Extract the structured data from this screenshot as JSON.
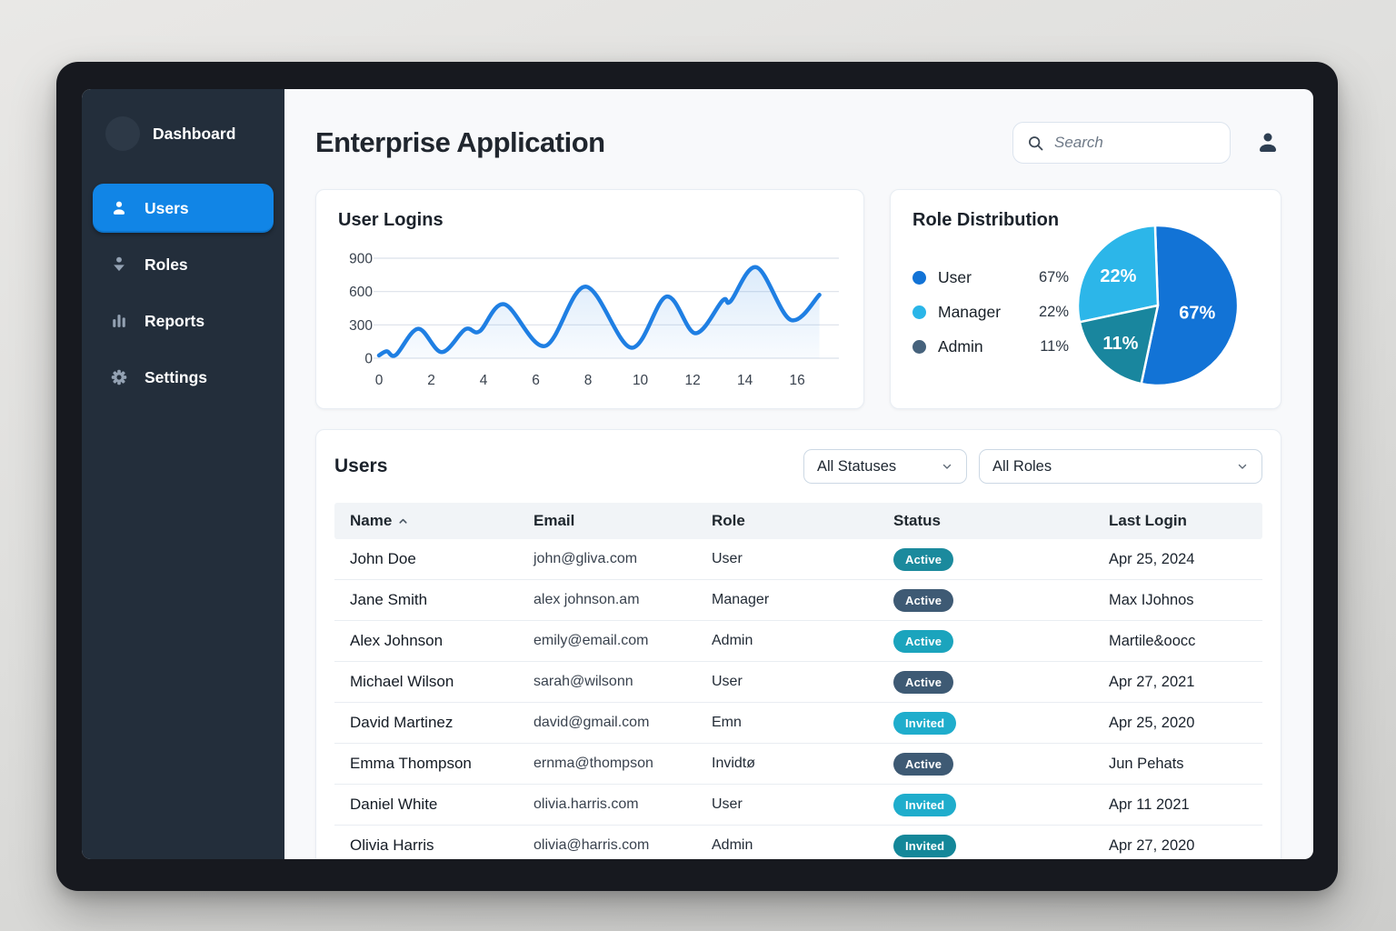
{
  "sidebar": {
    "header_label": "Dashboard",
    "items": [
      {
        "label": "Users",
        "icon": "user-icon",
        "active": true
      },
      {
        "label": "Roles",
        "icon": "roles-icon",
        "active": false
      },
      {
        "label": "Reports",
        "icon": "bar-chart-icon",
        "active": false
      },
      {
        "label": "Settings",
        "icon": "gear-icon",
        "active": false
      }
    ],
    "colors": {
      "background": "#232e3b",
      "active_item": "#1185e6",
      "icon": "#93a1b2"
    }
  },
  "header": {
    "title": "Enterprise Application",
    "search_placeholder": "Search"
  },
  "chart_data": [
    {
      "type": "line",
      "title": "User Logins",
      "x": [
        0,
        0.3,
        0.65,
        1.5,
        2.4,
        3.3,
        3.85,
        4.8,
        6.35,
        7.9,
        9.65,
        11,
        12.1,
        13.15,
        13.45,
        14.45,
        15.75,
        16.85
      ],
      "y": [
        25,
        62,
        30,
        265,
        55,
        260,
        242,
        485,
        110,
        645,
        95,
        555,
        225,
        520,
        512,
        818,
        345,
        570
      ],
      "x_ticks": [
        0,
        2,
        4,
        6,
        8,
        10,
        12,
        14,
        16
      ],
      "y_ticks": [
        0,
        300,
        600,
        900
      ],
      "xlim": [
        0,
        16.9
      ],
      "ylim": [
        0,
        900
      ],
      "grid": true,
      "legend": "none",
      "line_color": "#1f7fe3",
      "xlabel": "",
      "ylabel": ""
    },
    {
      "type": "pie",
      "title": "Role Distribution",
      "slices": [
        {
          "label": "User",
          "value": 67,
          "display": "67%",
          "color": "#1273d6",
          "legend_color": "#1273d6",
          "start_angle": -2,
          "end_angle": 192,
          "label_angle": 100,
          "label_r": 0.5
        },
        {
          "label": "Manager",
          "value": 22,
          "display": "22%",
          "color": "#2cb6e9",
          "legend_color": "#2ab5e8",
          "start_angle": 258,
          "end_angle": 358,
          "label_angle": 307,
          "label_r": 0.62
        },
        {
          "label": "Admin",
          "value": 11,
          "display": "11%",
          "color": "#19869e",
          "legend_color": "#46627c",
          "start_angle": 192,
          "end_angle": 258,
          "label_angle": 225,
          "label_r": 0.66
        }
      ],
      "legend_position": "left"
    }
  ],
  "users_section": {
    "title": "Users",
    "filters": [
      {
        "value": "All Statuses"
      },
      {
        "value": "All Roles"
      }
    ],
    "table": {
      "columns": [
        "Name",
        "Email",
        "Role",
        "Status",
        "Last Login"
      ],
      "sort_column": "Name",
      "sort_direction": "asc",
      "rows": [
        {
          "name": "John Doe",
          "email": "john@gliva.com",
          "role": "User",
          "status": "Active",
          "status_color": "#1b8a9d",
          "last_login": "Apr 25, 2024"
        },
        {
          "name": "Jane Smith",
          "email": "alex johnson.am",
          "role": "Manager",
          "status": "Active",
          "status_color": "#3e5a74",
          "last_login": "Max IJohnos"
        },
        {
          "name": "Alex Johnson",
          "email": "emily@email.com",
          "role": "Admin",
          "status": "Active",
          "status_color": "#1ba4bd",
          "last_login": "Martile&oocc"
        },
        {
          "name": "Michael Wilson",
          "email": "sarah@wilsonn",
          "role": "User",
          "status": "Active",
          "status_color": "#3e5a74",
          "last_login": "Apr 27, 2021"
        },
        {
          "name": "David Martinez",
          "email": "david@gmail.com",
          "role": "Emn",
          "status": "Invited",
          "status_color": "#1fadcc",
          "last_login": "Apr 25, 2020"
        },
        {
          "name": "Emma Thompson",
          "email": "ernma@thompson",
          "role": "Invidtø",
          "status": "Active",
          "status_color": "#3e5a74",
          "last_login": "Jun Pehats"
        },
        {
          "name": "Daniel White",
          "email": "olivia.harris.com",
          "role": "User",
          "status": "Invited",
          "status_color": "#1fadcc",
          "last_login": "Apr 11 2021"
        },
        {
          "name": "Olivia Harris",
          "email": "olivia@harris.com",
          "role": "Admin",
          "status": "Invited",
          "status_color": "#148799",
          "last_login": "Apr 27, 2020"
        }
      ]
    }
  }
}
